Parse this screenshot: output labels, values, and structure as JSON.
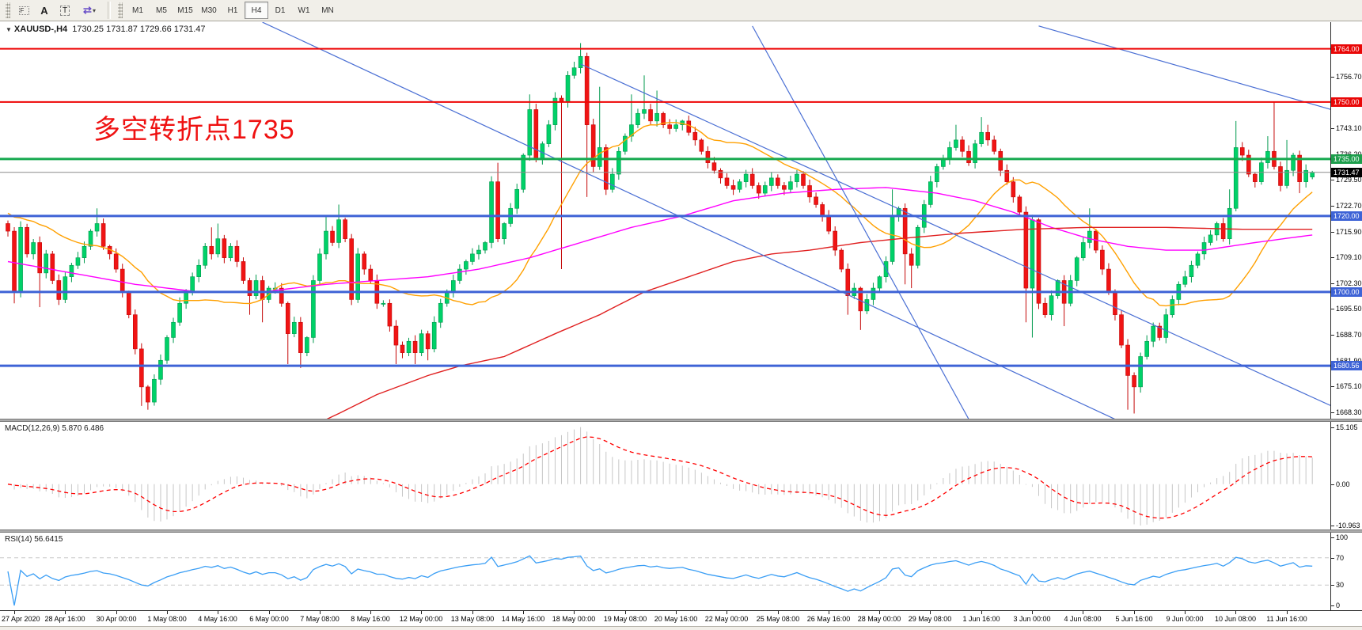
{
  "toolbar": {
    "icons": [
      {
        "name": "objects-grid-f-icon",
        "glyph": "F"
      },
      {
        "name": "text-label-icon",
        "glyph": "A"
      },
      {
        "name": "text-box-icon",
        "glyph": "T"
      },
      {
        "name": "color-arrange-icon",
        "glyph": "⇄"
      }
    ],
    "dropdown_caret": "▾",
    "timeframes": [
      "M1",
      "M5",
      "M15",
      "M30",
      "H1",
      "H4",
      "D1",
      "W1",
      "MN"
    ],
    "active_timeframe": "H4"
  },
  "chart_data": {
    "type": "candlestick",
    "symbol": "XAUUSD-,H4",
    "timeframe": "H4",
    "collapse_caret": "▼",
    "ohlc_text": "1730.25 1731.87 1729.66 1731.47",
    "last_candle": {
      "open": 1730.25,
      "high": 1731.87,
      "low": 1729.66,
      "close": 1731.47
    },
    "annotation": {
      "text": "多空转折点1735",
      "color": "#ef1111"
    },
    "closes": [
      1716,
      1700,
      1717,
      1710,
      1713,
      1705,
      1710,
      1703,
      1698,
      1704,
      1707,
      1709,
      1712,
      1716,
      1718,
      1712,
      1710,
      1706,
      1700,
      1694,
      1685,
      1675,
      1671,
      1677,
      1682,
      1688,
      1692,
      1697,
      1700,
      1704,
      1707,
      1712,
      1710,
      1714,
      1709,
      1712,
      1708,
      1703,
      1699,
      1703,
      1698,
      1701,
      1701,
      1697,
      1689,
      1692,
      1684,
      1688,
      1703,
      1710,
      1716,
      1713,
      1719,
      1714,
      1698,
      1710,
      1706,
      1703,
      1697,
      1697,
      1691,
      1686,
      1684,
      1687,
      1684,
      1689,
      1685,
      1692,
      1697,
      1700,
      1703,
      1706,
      1708,
      1710,
      1711,
      1713,
      1729,
      1714,
      1718,
      1722,
      1727,
      1736,
      1748,
      1735,
      1739,
      1744,
      1751,
      1750,
      1757,
      1759,
      1762,
      1744,
      1733,
      1738,
      1727,
      1731,
      1737,
      1741,
      1744,
      1747,
      1748,
      1745,
      1747,
      1744,
      1743,
      1744,
      1745,
      1742,
      1740,
      1737,
      1734,
      1732,
      1730,
      1728,
      1727,
      1729,
      1731,
      1728,
      1726,
      1728,
      1730,
      1728,
      1727,
      1729,
      1731,
      1728,
      1725,
      1723,
      1720,
      1716,
      1711,
      1706,
      1699,
      1701,
      1695,
      1698,
      1701,
      1704,
      1708,
      1720,
      1722,
      1710,
      1707,
      1717,
      1723,
      1729,
      1733,
      1735,
      1738,
      1740,
      1737,
      1734,
      1739,
      1742,
      1740,
      1737,
      1732,
      1729,
      1725,
      1721,
      1701,
      1719,
      1697,
      1694,
      1699,
      1703,
      1697,
      1703,
      1709,
      1713,
      1716,
      1711,
      1706,
      1700,
      1694,
      1686,
      1678,
      1675,
      1683,
      1687,
      1691,
      1688,
      1694,
      1698,
      1702,
      1704,
      1707,
      1710,
      1713,
      1715,
      1718,
      1714,
      1722,
      1738,
      1736,
      1731,
      1729,
      1734,
      1737,
      1733,
      1728,
      1732,
      1736,
      1729,
      1732,
      1731.47
    ],
    "wick_overrides": [
      [
        1,
        "L",
        1697
      ],
      [
        5,
        "L",
        1696
      ],
      [
        14,
        "H",
        1722
      ],
      [
        21,
        "L",
        1670
      ],
      [
        22,
        "L",
        1669
      ],
      [
        32,
        "H",
        1717
      ],
      [
        33,
        "H",
        1718
      ],
      [
        38,
        "L",
        1694
      ],
      [
        40,
        "L",
        1692
      ],
      [
        44,
        "L",
        1681
      ],
      [
        46,
        "L",
        1680
      ],
      [
        50,
        "H",
        1720
      ],
      [
        52,
        "H",
        1723
      ],
      [
        61,
        "L",
        1681
      ],
      [
        64,
        "L",
        1681
      ],
      [
        66,
        "L",
        1682
      ],
      [
        77,
        "H",
        1734
      ],
      [
        82,
        "H",
        1752
      ],
      [
        87,
        "L",
        1706
      ],
      [
        90,
        "H",
        1765.5
      ],
      [
        91,
        "L",
        1725
      ],
      [
        93,
        "H",
        1754
      ],
      [
        98,
        "H",
        1752
      ],
      [
        100,
        "H",
        1757
      ],
      [
        102,
        "H",
        1753
      ],
      [
        132,
        "L",
        1694
      ],
      [
        134,
        "L",
        1690
      ],
      [
        139,
        "H",
        1727
      ],
      [
        141,
        "L",
        1702
      ],
      [
        142,
        "L",
        1701
      ],
      [
        149,
        "H",
        1744
      ],
      [
        153,
        "H",
        1746
      ],
      [
        154,
        "H",
        1744
      ],
      [
        160,
        "L",
        1692
      ],
      [
        161,
        "L",
        1688
      ],
      [
        166,
        "L",
        1691
      ],
      [
        170,
        "H",
        1722
      ],
      [
        176,
        "L",
        1669
      ],
      [
        177,
        "L",
        1668
      ],
      [
        192,
        "H",
        1727
      ],
      [
        193,
        "H",
        1745
      ],
      [
        198,
        "H",
        1741
      ],
      [
        199,
        "H",
        1750
      ],
      [
        201,
        "H",
        1740
      ],
      [
        203,
        "L",
        1726
      ]
    ],
    "hlines": [
      {
        "price": 1764.0,
        "color": "#ee0505",
        "width": 2
      },
      {
        "price": 1750.0,
        "color": "#ee0505",
        "width": 2
      },
      {
        "price": 1735.0,
        "color": "#16a94f",
        "width": 3
      },
      {
        "price": 1720.0,
        "color": "#3e63d6",
        "width": 3
      },
      {
        "price": 1700.0,
        "color": "#3e63d6",
        "width": 3
      },
      {
        "price": 1680.56,
        "color": "#3e63d6",
        "width": 3
      }
    ],
    "current_price_line": {
      "price": 1731.47,
      "color": "#8a8a8a",
      "width": 1
    },
    "trendlines": [
      {
        "from": [
          40,
          1771
        ],
        "to": [
          174,
          1666.5
        ]
      },
      {
        "from": [
          90,
          1760
        ],
        "to": [
          208,
          1670
        ]
      },
      {
        "from": [
          117,
          1770
        ],
        "to": [
          151.5,
          1665
        ]
      },
      {
        "from": [
          162,
          1770
        ],
        "to": [
          208,
          1748
        ]
      }
    ],
    "ma_orange_period": 20,
    "ma_orange_pad": 1721,
    "ma_magenta": [
      [
        0,
        1708
      ],
      [
        10,
        1705
      ],
      [
        20,
        1702
      ],
      [
        30,
        1700
      ],
      [
        40,
        1700
      ],
      [
        50,
        1702
      ],
      [
        58,
        1703
      ],
      [
        66,
        1704
      ],
      [
        74,
        1706
      ],
      [
        82,
        1709
      ],
      [
        90,
        1713
      ],
      [
        98,
        1717
      ],
      [
        106,
        1720
      ],
      [
        114,
        1724
      ],
      [
        122,
        1726
      ],
      [
        130,
        1727
      ],
      [
        138,
        1727.5
      ],
      [
        146,
        1726
      ],
      [
        152,
        1724
      ],
      [
        158,
        1721
      ],
      [
        164,
        1717
      ],
      [
        170,
        1714
      ],
      [
        176,
        1712
      ],
      [
        182,
        1711
      ],
      [
        188,
        1711
      ],
      [
        196,
        1713
      ],
      [
        205,
        1715
      ]
    ],
    "ma_red": [
      [
        44,
        1661
      ],
      [
        47,
        1664
      ],
      [
        52,
        1668
      ],
      [
        58,
        1673
      ],
      [
        66,
        1678
      ],
      [
        71,
        1680.5
      ],
      [
        78,
        1683
      ],
      [
        86,
        1689
      ],
      [
        93,
        1694
      ],
      [
        100,
        1700
      ],
      [
        107,
        1704
      ],
      [
        114,
        1708
      ],
      [
        120,
        1710
      ],
      [
        126,
        1711
      ],
      [
        134,
        1713
      ],
      [
        140,
        1714
      ],
      [
        150,
        1715.5
      ],
      [
        160,
        1716.5
      ],
      [
        170,
        1717
      ],
      [
        182,
        1717
      ],
      [
        194,
        1716.5
      ],
      [
        205,
        1716.5
      ]
    ],
    "price_axis": {
      "ticks": [
        [
          "1756.70",
          1756.7
        ],
        [
          "1743.10",
          1743.1
        ],
        [
          "1736.20",
          1736.2
        ],
        [
          "1729.50",
          1729.5
        ],
        [
          "1722.70",
          1722.7
        ],
        [
          "1715.90",
          1715.9
        ],
        [
          "1709.10",
          1709.1
        ],
        [
          "1702.30",
          1702.3
        ],
        [
          "1695.50",
          1695.5
        ],
        [
          "1688.70",
          1688.7
        ],
        [
          "1681.90",
          1681.9
        ],
        [
          "1675.10",
          1675.1
        ],
        [
          "1668.30",
          1668.3
        ]
      ],
      "badges": [
        {
          "text": "1764.00",
          "value": 1764.0,
          "bg": "#e90707"
        },
        {
          "text": "1750.00",
          "value": 1750.0,
          "bg": "#e90707"
        },
        {
          "text": "1735.00",
          "value": 1735.0,
          "bg": "#1d9e4c"
        },
        {
          "text": "1731.47",
          "value": 1731.47,
          "bg": "#000000"
        },
        {
          "text": "1720.00",
          "value": 1720.0,
          "bg": "#3e63d6"
        },
        {
          "text": "1700.00",
          "value": 1700.0,
          "bg": "#3e63d6"
        },
        {
          "text": "1680.56",
          "value": 1680.56,
          "bg": "#3e63d6"
        }
      ]
    },
    "time_axis": {
      "labels": [
        "27 Apr 2020",
        "28 Apr 16:00",
        "30 Apr 00:00",
        "1 May 08:00",
        "4 May 16:00",
        "6 May 00:00",
        "7 May 08:00",
        "8 May 16:00",
        "12 May 00:00",
        "13 May 08:00",
        "14 May 16:00",
        "18 May 00:00",
        "19 May 08:00",
        "20 May 16:00",
        "22 May 00:00",
        "25 May 08:00",
        "26 May 16:00",
        "28 May 00:00",
        "29 May 08:00",
        "1 Jun 16:00",
        "3 Jun 00:00",
        "4 Jun 08:00",
        "5 Jun 16:00",
        "9 Jun 00:00",
        "10 Jun 08:00",
        "11 Jun 16:00"
      ]
    },
    "colors": {
      "bull": "#00d168",
      "bull_stroke": "#009a4e",
      "bear": "#f01414",
      "bear_stroke": "#c40808",
      "ma_orange": "#ffa000",
      "ma_magenta": "#ff00ff",
      "ma_red": "#e02020",
      "trend_blue": "#4a6fd4",
      "macd_hist": "#c6c6c6",
      "macd_signal": "#ff0000",
      "rsi_line": "#3a9ef5",
      "level_dash": "#c8c8c8"
    }
  },
  "indicators": {
    "macd": {
      "label": "MACD(12,26,9)",
      "values_text": "5.870 6.486",
      "fast": 12,
      "slow": 26,
      "signal": 9,
      "current_macd": 5.87,
      "current_signal": 6.486,
      "axis": [
        [
          "15.105",
          15.105
        ],
        [
          "0.00",
          0
        ],
        [
          "-10.963",
          -10.963
        ]
      ]
    },
    "rsi": {
      "label": "RSI(14)",
      "value_text": "56.6415",
      "period": 14,
      "current_value": 56.6415,
      "axis": [
        [
          "100",
          100
        ],
        [
          "70",
          70
        ],
        [
          "30",
          30
        ],
        [
          "0",
          0
        ]
      ],
      "dashed_levels": [
        70,
        30
      ]
    }
  }
}
